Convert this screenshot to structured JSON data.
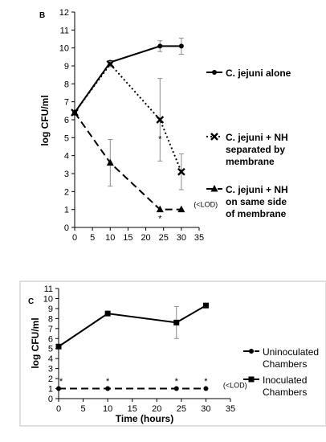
{
  "chart_data": [
    {
      "type": "line",
      "panel_label": "B",
      "title": "",
      "xlabel": "",
      "ylabel": "log CFU/ml",
      "xlim": [
        0,
        35
      ],
      "ylim": [
        0,
        12
      ],
      "x_ticks": [
        "0",
        "5",
        "10",
        "15",
        "20",
        "25",
        "30",
        "35"
      ],
      "y_ticks": [
        "0",
        "1",
        "2",
        "3",
        "4",
        "5",
        "6",
        "7",
        "8",
        "9",
        "10",
        "11",
        "12"
      ],
      "grid": false,
      "legend_position": "right",
      "series": [
        {
          "name": "C. jejuni alone",
          "name_lines": [
            "C. jejuni alone"
          ],
          "style": "solid",
          "marker": "circle",
          "x": [
            0,
            10,
            24,
            30
          ],
          "y": [
            6.4,
            9.2,
            10.1,
            10.1
          ],
          "err": [
            0,
            0.1,
            0.3,
            0.45
          ]
        },
        {
          "name": "C. jejuni + NH separated by membrane",
          "name_lines": [
            "C. jejuni + NH",
            "separated by",
            "membrane"
          ],
          "style": "dotted",
          "marker": "x",
          "x": [
            0,
            10,
            24,
            30
          ],
          "y": [
            6.4,
            9.1,
            6.0,
            3.1
          ],
          "err": [
            0,
            0.15,
            2.3,
            1.0
          ]
        },
        {
          "name": "C. jejuni + NH on same side of membrane",
          "name_lines": [
            "C. jejuni + NH",
            "on same side",
            "of membrane"
          ],
          "style": "dashed",
          "marker": "triangle",
          "x": [
            0,
            10,
            24,
            30
          ],
          "y": [
            6.4,
            3.6,
            1.0,
            1.0
          ],
          "err": [
            0,
            1.3,
            0,
            0
          ]
        }
      ],
      "annotations": [
        {
          "text": "*",
          "x": 24,
          "y": 5.0
        },
        {
          "text": "*",
          "x": 24,
          "y": 0.55
        },
        {
          "text": "(<LOD)",
          "x": 33.5,
          "y": 1.15
        }
      ]
    },
    {
      "type": "line",
      "panel_label": "C",
      "title": "",
      "xlabel": "Time (hours)",
      "ylabel": "log CFU/ml",
      "xlim": [
        0,
        35
      ],
      "ylim": [
        0,
        11
      ],
      "x_ticks": [
        "0",
        "5",
        "10",
        "15",
        "20",
        "25",
        "30",
        "35"
      ],
      "y_ticks": [
        "0",
        "1",
        "2",
        "3",
        "4",
        "5",
        "6",
        "7",
        "8",
        "9",
        "10",
        "11"
      ],
      "grid": false,
      "legend_position": "right",
      "series": [
        {
          "name": "Uninoculated Chambers",
          "name_lines": [
            "Uninoculated",
            "Chambers"
          ],
          "style": "dashed",
          "marker": "circle",
          "x": [
            0,
            10,
            24,
            30
          ],
          "y": [
            1.0,
            1.0,
            1.0,
            1.0
          ],
          "err": [
            0,
            0,
            0,
            0
          ]
        },
        {
          "name": "Inoculated Chambers",
          "name_lines": [
            "Inoculated",
            "Chambers"
          ],
          "style": "solid",
          "marker": "square",
          "x": [
            0,
            10,
            24,
            30
          ],
          "y": [
            5.2,
            8.5,
            7.6,
            9.3
          ],
          "err": [
            0,
            0,
            1.6,
            0.2
          ]
        }
      ],
      "annotations": [
        {
          "text": "*",
          "x": 0.5,
          "y": 1.85
        },
        {
          "text": "*",
          "x": 10,
          "y": 1.85
        },
        {
          "text": "*",
          "x": 24,
          "y": 1.85
        },
        {
          "text": "*",
          "x": 30,
          "y": 1.85
        },
        {
          "text": "(<LOD)",
          "x": 33.5,
          "y": 1.1
        }
      ]
    }
  ]
}
